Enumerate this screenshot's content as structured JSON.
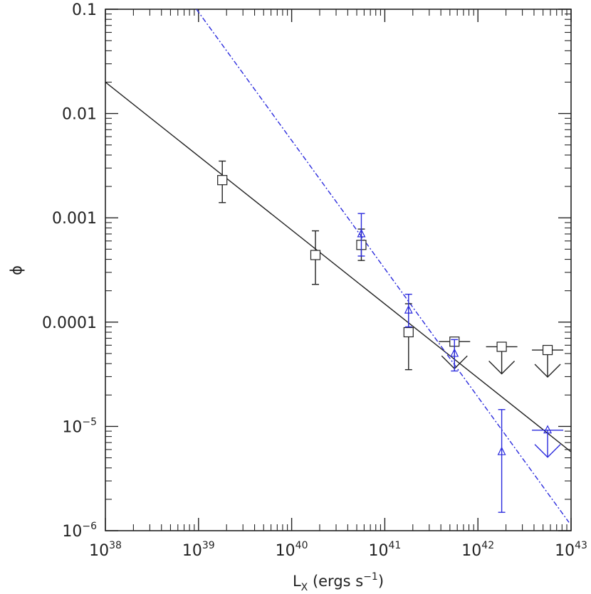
{
  "chart_data": {
    "type": "scatter",
    "title": "",
    "xlabel": "L",
    "xlabel_subscript": "X",
    "xlabel_unit": "(ergs s",
    "xlabel_unit_exp": "−1",
    "xlabel_unit_close": ")",
    "ylabel": "ϕ",
    "x_scale": "log",
    "y_scale": "log",
    "xlim": [
      1e+38,
      1e+43
    ],
    "ylim": [
      1e-06,
      0.1
    ],
    "x_ticks": [
      {
        "base": "10",
        "exp": "38"
      },
      {
        "base": "10",
        "exp": "39"
      },
      {
        "base": "10",
        "exp": "40"
      },
      {
        "base": "10",
        "exp": "41"
      },
      {
        "base": "10",
        "exp": "42"
      },
      {
        "base": "10",
        "exp": "43"
      }
    ],
    "y_ticks": [
      {
        "text": "10",
        "exp": "−6"
      },
      {
        "text": "10",
        "exp": "−5"
      },
      {
        "text": "0.0001",
        "exp": ""
      },
      {
        "text": "0.001",
        "exp": ""
      },
      {
        "text": "0.01",
        "exp": ""
      },
      {
        "text": "0.1",
        "exp": ""
      }
    ],
    "grid": false,
    "colors": {
      "series_black": "#222222",
      "series_blue": "#2b2bdd",
      "axis": "#222222"
    },
    "series": [
      {
        "marker": "square",
        "color": "#222222",
        "points": [
          {
            "x": 1.8e+39,
            "y": 0.0023,
            "ylo": 0.0014,
            "yhi": 0.0035
          },
          {
            "x": 1.8e+40,
            "y": 0.00044,
            "ylo": 0.00023,
            "yhi": 0.00075
          },
          {
            "x": 5.6e+40,
            "y": 0.00055,
            "ylo": 0.00039,
            "yhi": 0.00078
          },
          {
            "x": 1.8e+41,
            "y": 8e-05,
            "ylo": 3.5e-05,
            "yhi": 0.00015
          }
        ],
        "upper_limits": [
          {
            "x": 5.6e+41,
            "y": 6.5e-05
          },
          {
            "x": 1.8e+42,
            "y": 5.8e-05
          },
          {
            "x": 5.6e+42,
            "y": 5.4e-05
          }
        ]
      },
      {
        "marker": "triangle",
        "color": "#2b2bdd",
        "points": [
          {
            "x": 5.6e+40,
            "y": 0.0007,
            "ylo": 0.00043,
            "yhi": 0.0011
          },
          {
            "x": 1.8e+41,
            "y": 0.00013,
            "ylo": 9e-05,
            "yhi": 0.000185
          },
          {
            "x": 5.6e+41,
            "y": 5e-05,
            "ylo": 3.4e-05,
            "yhi": 6.8e-05
          },
          {
            "x": 1.8e+42,
            "y": 5.7e-06,
            "ylo": 1.5e-06,
            "yhi": 1.45e-05
          }
        ],
        "upper_limits": [
          {
            "x": 5.6e+42,
            "y": 9.2e-06
          }
        ]
      }
    ],
    "fits": [
      {
        "style": "solid",
        "color": "#222222",
        "x": [
          1e+38,
          1e+43
        ],
        "y": [
          0.02,
          5.7e-06
        ]
      },
      {
        "style": "dash-dot",
        "color": "#2b2bdd",
        "x": [
          9.5e+38,
          9.5e+42
        ],
        "y": [
          0.1,
          1.2e-06
        ]
      }
    ]
  }
}
